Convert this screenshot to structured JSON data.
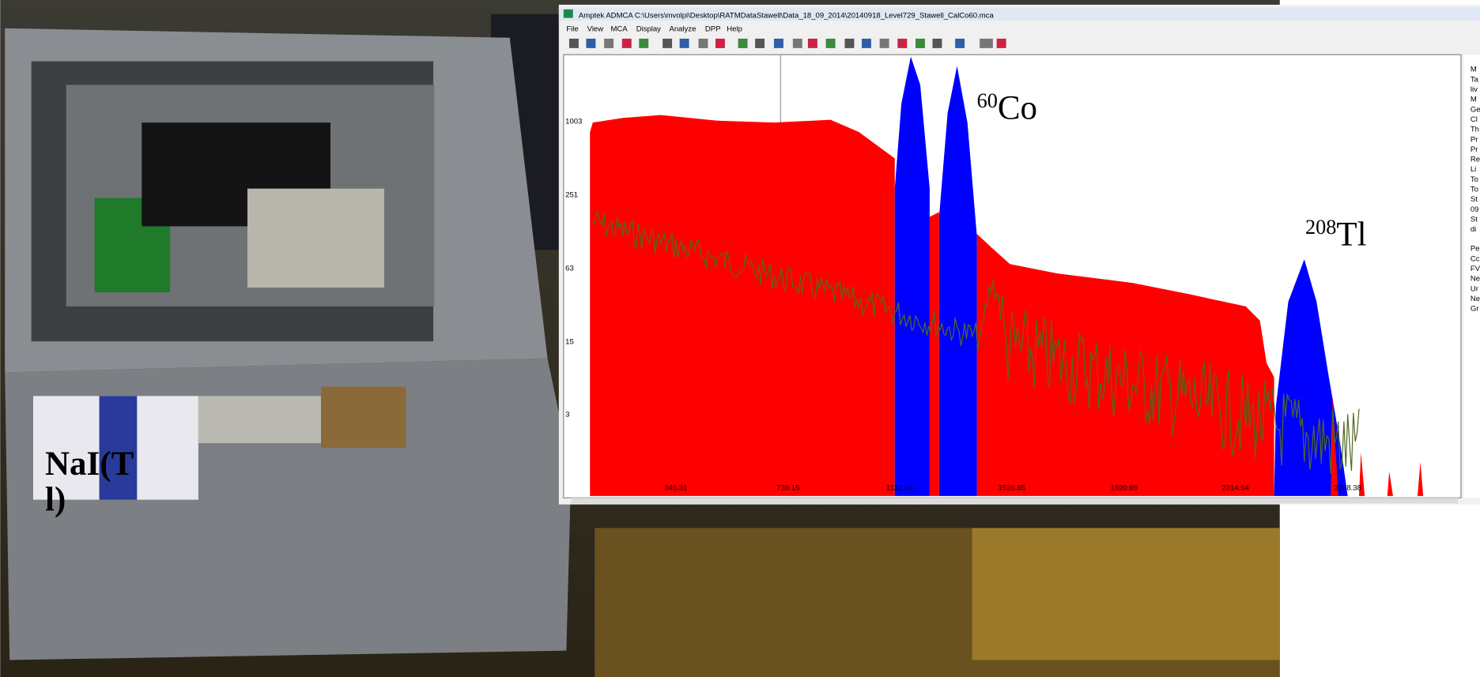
{
  "window": {
    "title": "Amptek ADMCA    C:\\Users\\mvolpi\\Desktop\\RATMDataStawell\\Data_18_09_2014\\20140918_Level729_Stawell_CalCo60.mca",
    "menu": [
      "File",
      "View",
      "MCA",
      "Display",
      "Analyze",
      "DPP",
      "Help"
    ]
  },
  "spectrum": {
    "y_labels": [
      "1003",
      "251",
      "63",
      "15",
      "3"
    ],
    "x_labels": [
      "345.31",
      "739.15",
      "1132.99",
      "1526.85",
      "1920.69",
      "2314.54",
      "2708.38"
    ]
  },
  "side_panel": [
    "M",
    "Ta",
    "liv",
    "M",
    "Ge",
    "Cl",
    "Th",
    "Pr",
    "Pr",
    "Re",
    "Li",
    "To",
    "To",
    "St",
    "09",
    "St",
    "di",
    "Pe",
    "Cc",
    "FV",
    "Ne",
    "Ur",
    "Ne",
    "Gr"
  ],
  "annotations": {
    "co60": {
      "mass": "60",
      "element": "Co"
    },
    "tl208": {
      "mass": "208",
      "element": "Tl"
    },
    "detector": "NaI(Tl)"
  }
}
